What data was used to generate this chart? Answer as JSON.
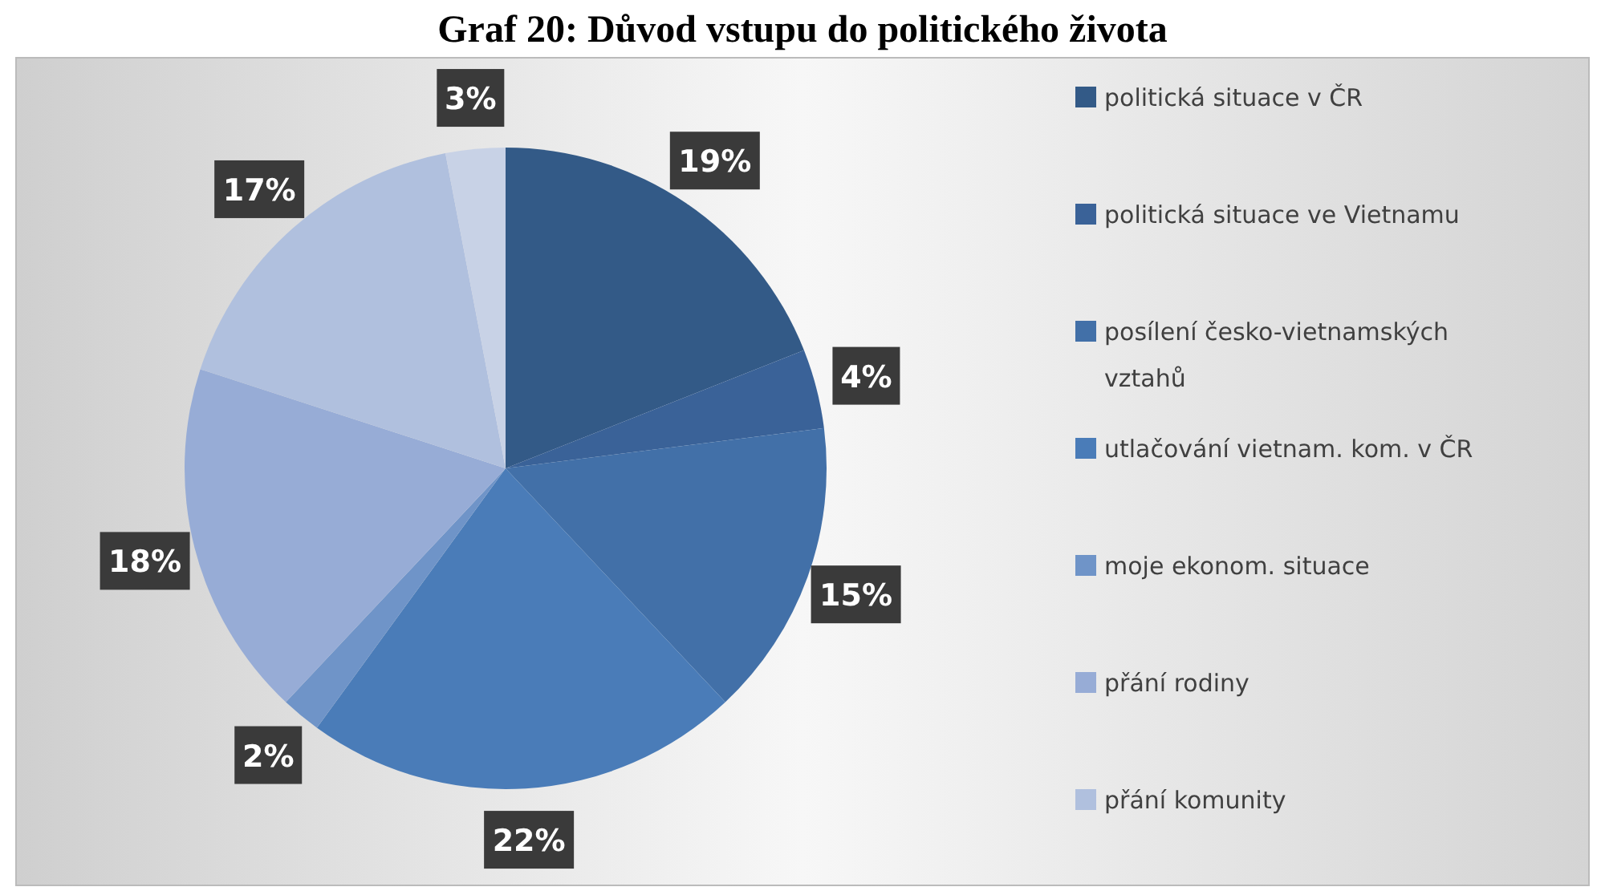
{
  "chart_data": {
    "type": "pie",
    "title": "Graf 20: Důvod vstupu do politického života",
    "categories": [
      "politická situace v ČR",
      "politická situace ve Vietnamu",
      "posílení česko-vietnamských vztahů",
      "utlačování vietnam. kom. v ČR",
      "moje ekonom. situace",
      "přání rodiny",
      "přání komunity",
      null
    ],
    "values": [
      19,
      4,
      15,
      22,
      2,
      18,
      17,
      3
    ],
    "colors": [
      "#335a87",
      "#3a6298",
      "#4270a8",
      "#4a7cb8",
      "#6f94c8",
      "#97acd6",
      "#b0c0de",
      "#c8d2e6"
    ],
    "value_labels": [
      "19%",
      "4%",
      "15%",
      "22%",
      "2%",
      "18%",
      "17%",
      "3%"
    ],
    "legend": "right"
  }
}
